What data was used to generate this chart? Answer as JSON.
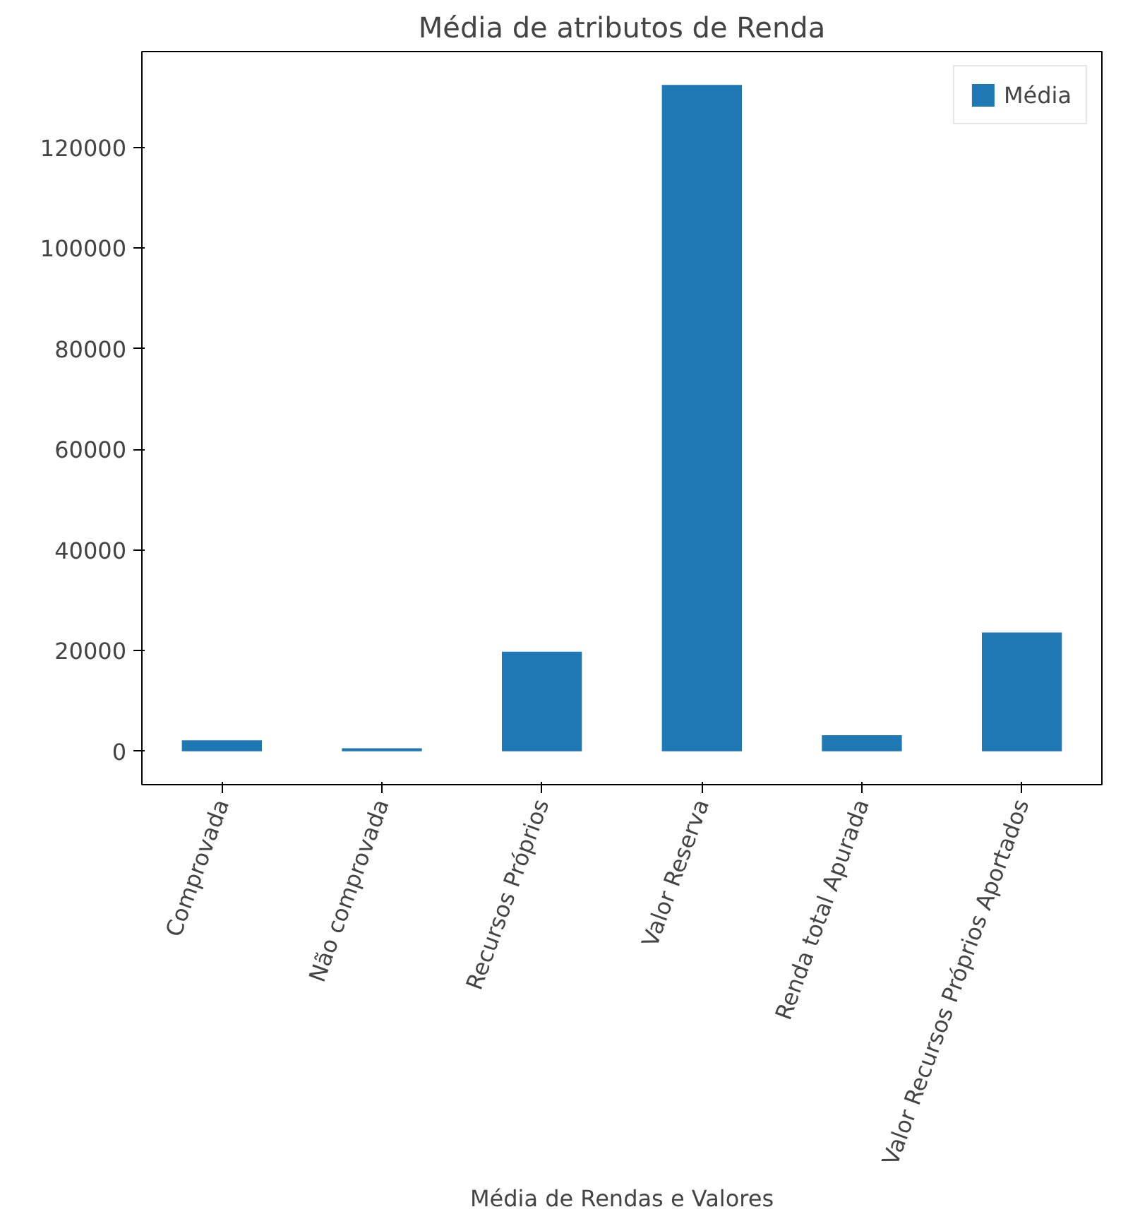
{
  "chart_data": {
    "type": "bar",
    "title": "Média de atributos de Renda",
    "xlabel": "Média de Rendas e Valores",
    "categories": [
      "Comprovada",
      "Não comprovada",
      "Recursos Próprios",
      "Valor Reserva",
      "Renda total Apurada",
      "Valor Recursos Próprios Aportados"
    ],
    "series": [
      {
        "name": "Média",
        "color": "#1f77b4",
        "values": [
          2200,
          600,
          19800,
          132400,
          3200,
          23600
        ]
      }
    ],
    "ylim": [
      -6620,
      139020
    ],
    "yticks": [
      0,
      20000,
      40000,
      60000,
      80000,
      100000,
      120000
    ],
    "grid": false,
    "legend": "top right"
  }
}
